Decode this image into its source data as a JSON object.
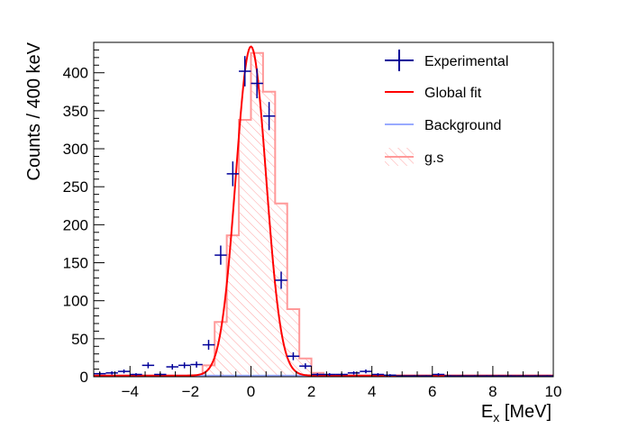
{
  "chart_data": {
    "type": "histogram",
    "title": "",
    "xlabel": "E",
    "xlabel_sub": "x",
    "xlabel_unit": " [MeV]",
    "ylabel": "Counts / 400 keV",
    "xlim": [
      -5.2,
      10
    ],
    "ylim": [
      0,
      440
    ],
    "grid": false,
    "legend_position": "top-right",
    "x_ticks": [
      -4,
      -2,
      0,
      2,
      4,
      6,
      8,
      10
    ],
    "y_ticks": [
      0,
      50,
      100,
      150,
      200,
      250,
      300,
      350,
      400
    ],
    "bin_width": 0.4,
    "colors": {
      "experimental": "#000099",
      "global_fit": "#ff0000",
      "background": "#99aaff",
      "gs_line": "#ff9999",
      "gs_hatch": "#ff9999"
    },
    "legend": [
      {
        "key": "experimental",
        "label": "Experimental",
        "style": "errorbar"
      },
      {
        "key": "global_fit",
        "label": "Global fit",
        "style": "line"
      },
      {
        "key": "background",
        "label": "Background",
        "style": "line"
      },
      {
        "key": "gs",
        "label": "g.s",
        "style": "hatched"
      }
    ],
    "experimental": {
      "x": [
        -5.0,
        -4.6,
        -4.2,
        -3.8,
        -3.4,
        -3.0,
        -2.6,
        -2.2,
        -1.8,
        -1.4,
        -1.0,
        -0.6,
        -0.2,
        0.2,
        0.6,
        1.0,
        1.4,
        1.8,
        2.2,
        2.6,
        3.0,
        3.4,
        3.8,
        4.2,
        4.6,
        5.0,
        5.4,
        5.8,
        6.2,
        6.6,
        7.0,
        7.4,
        7.8,
        8.2,
        8.6,
        9.0,
        9.4,
        9.8
      ],
      "y": [
        4,
        5,
        7,
        3,
        15,
        3,
        13,
        15,
        16,
        42,
        160,
        267,
        402,
        386,
        343,
        127,
        27,
        14,
        3,
        3,
        3,
        5,
        7,
        3,
        2,
        1,
        1,
        1,
        3,
        1,
        1,
        1,
        1,
        1,
        1,
        1,
        1,
        1
      ],
      "yerr": [
        2,
        2.2,
        2.6,
        1.7,
        3.9,
        1.7,
        3.6,
        3.9,
        4,
        6.5,
        12.6,
        16.3,
        20,
        19.6,
        18.5,
        11.3,
        5.2,
        3.7,
        1.7,
        1.7,
        1.7,
        2.2,
        2.6,
        1.7,
        1.4,
        1,
        1,
        1,
        1.7,
        1,
        1,
        1,
        1,
        1,
        1,
        1,
        1,
        1
      ]
    },
    "global_fit": {
      "shape": "gaussian",
      "amplitude": 433,
      "mean": 0.0,
      "sigma": 0.5
    },
    "background": {
      "value": 1.5
    },
    "gs_histogram": {
      "edges_start": -5.2,
      "values": [
        0,
        0,
        0,
        0,
        0,
        0,
        0,
        0,
        2,
        15,
        72,
        186,
        338,
        426,
        375,
        228,
        89,
        24,
        5,
        1,
        0,
        0,
        0,
        0,
        0,
        0,
        0,
        0,
        0,
        0,
        0,
        0,
        0,
        0,
        0,
        0,
        0,
        0
      ]
    }
  }
}
